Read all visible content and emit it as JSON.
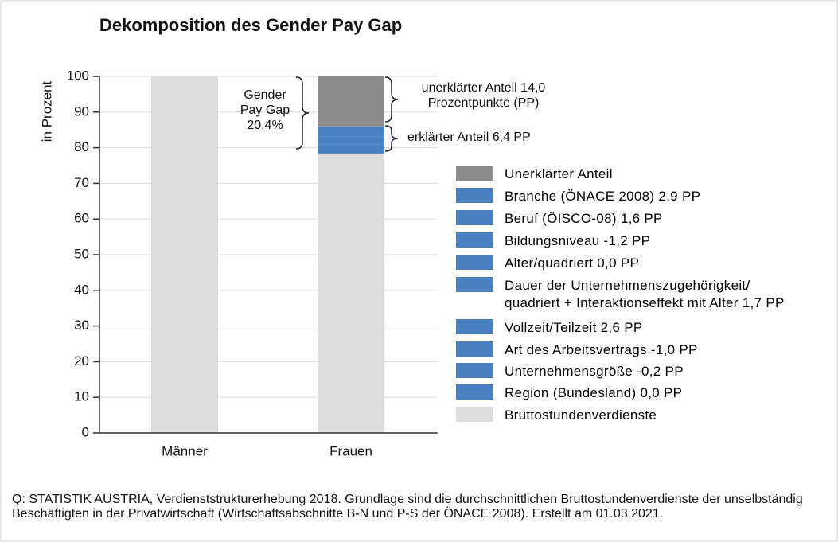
{
  "chart_data": {
    "type": "stacked-bar",
    "title": "Dekomposition des Gender Pay Gap",
    "y_label": "in Prozent",
    "categories": [
      "Männer",
      "Frauen"
    ],
    "ylim": [
      0,
      100
    ],
    "yticks": [
      0,
      10,
      20,
      30,
      40,
      50,
      60,
      70,
      80,
      90,
      100
    ],
    "grid": true,
    "series": [
      {
        "name": "Unerklärter Anteil",
        "color": "#8c8c8c",
        "values": [
          null,
          14.0
        ]
      },
      {
        "name": "Branche (ÖNACE 2008) 2,9 PP",
        "color": "#4a7fc2",
        "values": [
          null,
          2.9
        ]
      },
      {
        "name": "Beruf (ÖISCO-08) 1,6 PP",
        "color": "#4a7fc2",
        "values": [
          null,
          1.6
        ]
      },
      {
        "name": "Bildungsniveau -1,2 PP",
        "color": "#4a7fc2",
        "values": [
          null,
          -1.2
        ]
      },
      {
        "name": "Alter/quadriert 0,0 PP",
        "color": "#4a7fc2",
        "values": [
          null,
          0.0
        ]
      },
      {
        "name": "Dauer der Unternehmenszugehörigkeit/\nquadriert + Interaktionseffekt mit Alter 1,7 PP",
        "color": "#4a7fc2",
        "values": [
          null,
          1.7
        ]
      },
      {
        "name": "Vollzeit/Teilzeit 2,6 PP",
        "color": "#4a7fc2",
        "values": [
          null,
          2.6
        ]
      },
      {
        "name": "Art des Arbeitsvertrags -1,0 PP",
        "color": "#4a7fc2",
        "values": [
          null,
          -1.0
        ]
      },
      {
        "name": "Unternehmensgröße -0,2 PP",
        "color": "#4a7fc2",
        "values": [
          null,
          -0.2
        ]
      },
      {
        "name": "Region (Bundesland) 0,0 PP",
        "color": "#4a7fc2",
        "values": [
          null,
          0.0
        ]
      },
      {
        "name": "Bruttostundenverdienste",
        "color": "#dcdcdc",
        "values": [
          100,
          79.6
        ]
      }
    ],
    "annotations": {
      "gap": "Gender\nPay Gap\n20,4%",
      "unexplained": "unerklärter Anteil 14,0\nProzentpunkte (PP)",
      "explained": "erklärter Anteil 6,4 PP"
    },
    "source": "Q: STATISTIK AUSTRIA, Verdienststrukturerhebung 2018. Grundlage sind die durchschnittlichen Bruttostundenverdienste der unselbständig Beschäftigten in der Privatwirtschaft (Wirtschaftsabschnitte B-N und P-S der ÖNACE 2008). Erstellt am 01.03.2021."
  }
}
